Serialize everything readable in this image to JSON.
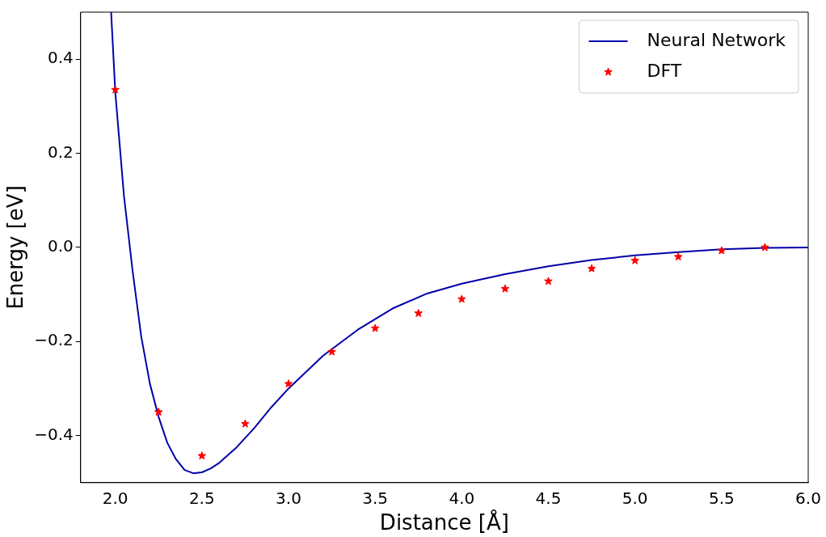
{
  "chart_data": {
    "type": "line",
    "xlabel": "Distance [Å]",
    "ylabel": "Energy [eV]",
    "xlim": [
      1.8,
      6.0
    ],
    "ylim": [
      -0.5,
      0.5
    ],
    "xticks": [
      {
        "value": 2.0,
        "label": "2.0"
      },
      {
        "value": 2.5,
        "label": "2.5"
      },
      {
        "value": 3.0,
        "label": "3.0"
      },
      {
        "value": 3.5,
        "label": "3.5"
      },
      {
        "value": 4.0,
        "label": "4.0"
      },
      {
        "value": 4.5,
        "label": "4.5"
      },
      {
        "value": 5.0,
        "label": "5.0"
      },
      {
        "value": 5.5,
        "label": "5.5"
      },
      {
        "value": 6.0,
        "label": "6.0"
      }
    ],
    "yticks": [
      {
        "value": -0.4,
        "label": "−0.4"
      },
      {
        "value": -0.2,
        "label": "−0.2"
      },
      {
        "value": 0,
        "label": "0.0"
      },
      {
        "value": 0.2,
        "label": "0.2"
      },
      {
        "value": 0.4,
        "label": "0.4"
      }
    ],
    "grid": false,
    "legend": "top right",
    "series": [
      {
        "name": "Neural Network",
        "color": "#0000aa",
        "marker": "none",
        "line_style": "solid",
        "x": [
          1.976,
          2.0,
          2.05,
          2.1,
          2.15,
          2.2,
          2.25,
          2.3,
          2.35,
          2.4,
          2.45,
          2.5,
          2.55,
          2.6,
          2.7,
          2.8,
          2.9,
          3.0,
          3.2,
          3.4,
          3.6,
          3.8,
          4.0,
          4.25,
          4.5,
          4.75,
          5.0,
          5.25,
          5.5,
          5.75,
          6.0
        ],
        "values": [
          0.5,
          0.33,
          0.11,
          -0.05,
          -0.19,
          -0.29,
          -0.36,
          -0.415,
          -0.45,
          -0.473,
          -0.48,
          -0.478,
          -0.47,
          -0.458,
          -0.425,
          -0.385,
          -0.34,
          -0.3,
          -0.23,
          -0.175,
          -0.13,
          -0.098,
          -0.077,
          -0.057,
          -0.04,
          -0.027,
          -0.017,
          -0.01,
          -0.004,
          -0.001,
          0.0
        ]
      },
      {
        "name": "DFT",
        "type": "scatter",
        "color": "#ff0000",
        "marker": "star",
        "x": [
          2.0,
          2.25,
          2.5,
          2.75,
          3.0,
          3.25,
          3.5,
          3.75,
          4.0,
          4.25,
          4.5,
          4.75,
          5.0,
          5.25,
          5.5,
          5.75
        ],
        "values": [
          0.335,
          -0.35,
          -0.443,
          -0.375,
          -0.29,
          -0.222,
          -0.172,
          -0.14,
          -0.11,
          -0.088,
          -0.072,
          -0.045,
          -0.028,
          -0.02,
          -0.007,
          0.0
        ]
      }
    ]
  }
}
